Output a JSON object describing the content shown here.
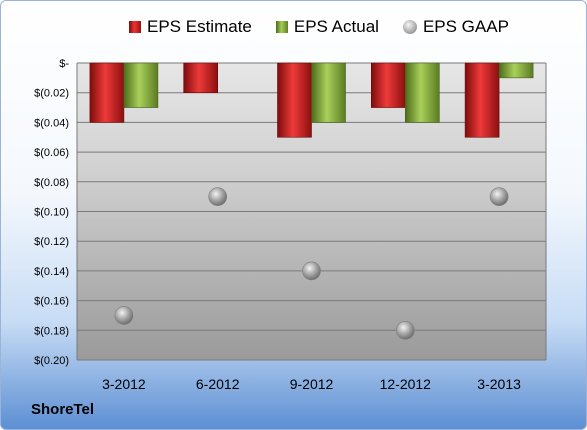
{
  "chart_data": {
    "type": "bar",
    "categories": [
      "3-2012",
      "6-2012",
      "9-2012",
      "12-2012",
      "3-2013"
    ],
    "series": [
      {
        "name": "EPS Estimate",
        "type": "bar",
        "values": [
          -0.04,
          -0.02,
          -0.05,
          -0.03,
          -0.05
        ]
      },
      {
        "name": "EPS Actual",
        "type": "bar",
        "values": [
          -0.03,
          null,
          -0.04,
          -0.04,
          -0.01
        ]
      },
      {
        "name": "EPS GAAP",
        "type": "scatter",
        "values": [
          -0.17,
          -0.09,
          -0.14,
          -0.18,
          -0.09
        ]
      }
    ],
    "ylim": [
      -0.2,
      0
    ],
    "yticks": [
      0,
      -0.02,
      -0.04,
      -0.06,
      -0.08,
      -0.1,
      -0.12,
      -0.14,
      -0.16,
      -0.18,
      -0.2
    ],
    "ytick_labels": [
      "$-",
      "$(0.02)",
      "$(0.04)",
      "$(0.06)",
      "$(0.08)",
      "$(0.10)",
      "$(0.12)",
      "$(0.14)",
      "$(0.16)",
      "$(0.18)",
      "$(0.20)"
    ],
    "grid": true,
    "legend": "top",
    "colors": {
      "estimate": "#cc1f1f",
      "actual": "#8db443",
      "gaap": "#a0a0a0"
    }
  },
  "legend": {
    "estimate": "EPS Estimate",
    "actual": "EPS Actual",
    "gaap": "EPS GAAP"
  },
  "brand": "ShoreTel"
}
